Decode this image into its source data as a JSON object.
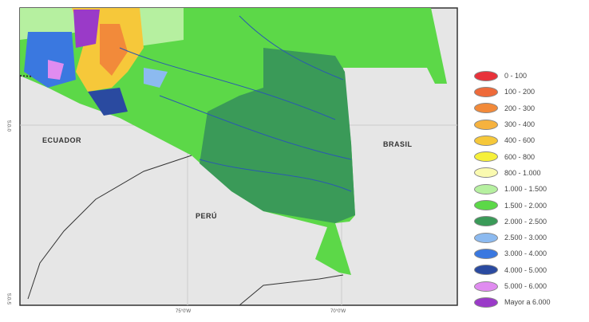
{
  "labels": {
    "ecuador": "ECUADOR",
    "peru": "PERÚ",
    "brasil": "BRASIL"
  },
  "ticks": {
    "lon75": "75°0'W",
    "lon70": "70°0'W",
    "lat0": "0°0'S",
    "lat5": "5°0'S"
  },
  "legend": [
    {
      "label": "0 - 100",
      "color": "#e8323a"
    },
    {
      "label": "100 - 200",
      "color": "#ee6a3a"
    },
    {
      "label": "200 - 300",
      "color": "#f28a3a"
    },
    {
      "label": "300 - 400",
      "color": "#f6b23e"
    },
    {
      "label": "400 - 600",
      "color": "#f6c83a"
    },
    {
      "label": "600 - 800",
      "color": "#f6f03a"
    },
    {
      "label": "800 - 1.000",
      "color": "#fafab0"
    },
    {
      "label": "1.000 - 1.500",
      "color": "#b6f0a0"
    },
    {
      "label": "1.500 - 2.000",
      "color": "#5cd848"
    },
    {
      "label": "2.000 - 2.500",
      "color": "#3a9a58"
    },
    {
      "label": "2.500 - 3.000",
      "color": "#8cbaf0"
    },
    {
      "label": "3.000 - 4.000",
      "color": "#3a78e0"
    },
    {
      "label": "4.000 - 5.000",
      "color": "#2a4aa0"
    },
    {
      "label": "5.000 - 6.000",
      "color": "#e08cf0"
    },
    {
      "label": "Mayor a 6.000",
      "color": "#9a3ac8"
    }
  ]
}
